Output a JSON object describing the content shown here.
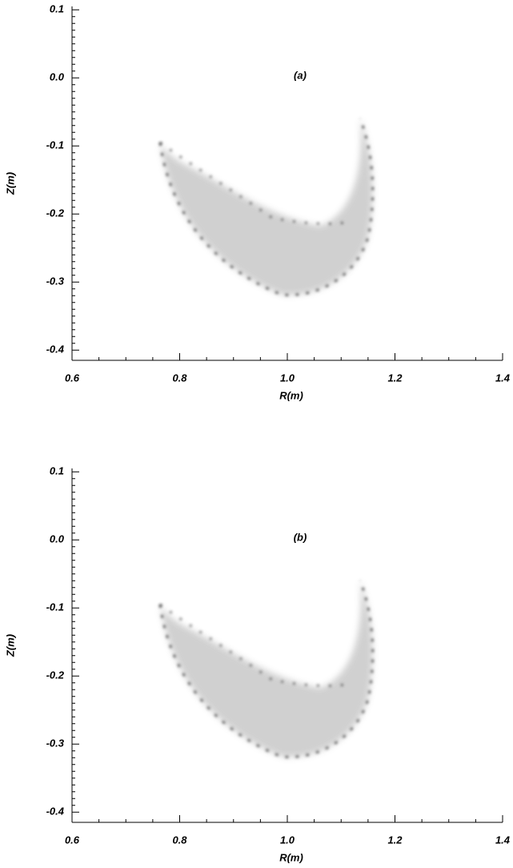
{
  "chart_data": [
    {
      "type": "image",
      "annotation": "(a)",
      "xlabel": "R(m)",
      "ylabel": "Z(m)",
      "xlim": [
        0.6,
        1.4
      ],
      "xticks": [
        0.6,
        0.8,
        {
          "value": 1.0,
          "label": "1.0"
        },
        1.2,
        1.4
      ],
      "ylim": [
        -0.415,
        0.105
      ],
      "yticks": [
        0.1,
        {
          "value": 0,
          "label": "0.0"
        },
        -0.1,
        -0.2,
        -0.3,
        -0.4
      ]
    },
    {
      "type": "image",
      "annotation": "(b)",
      "xlabel": "R(m)",
      "ylabel": "Z(m)",
      "xlim": [
        0.6,
        1.4
      ],
      "xticks": [
        0.6,
        0.8,
        {
          "value": 1.0,
          "label": "1.0"
        },
        1.2,
        1.4
      ],
      "ylim": [
        -0.415,
        0.105
      ],
      "yticks": [
        0.1,
        {
          "value": 0,
          "label": "0.0"
        },
        -0.1,
        -0.2,
        -0.3,
        -0.4
      ]
    }
  ]
}
